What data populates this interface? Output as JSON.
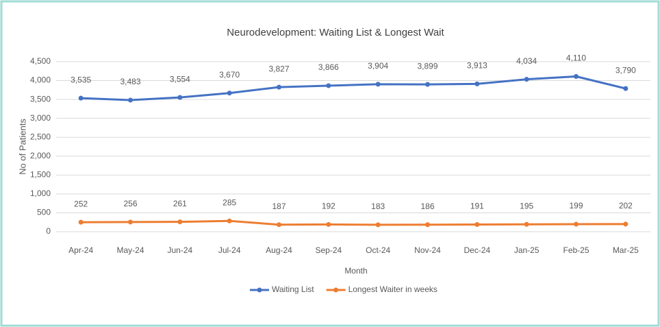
{
  "chart_data": {
    "type": "line",
    "title": "Neurodevelopment: Waiting List & Longest Wait",
    "x_label": "Month",
    "y_label": "No of Patients",
    "categories": [
      "Apr-24",
      "May-24",
      "Jun-24",
      "Jul-24",
      "Aug-24",
      "Sep-24",
      "Oct-24",
      "Nov-24",
      "Dec-24",
      "Jan-25",
      "Feb-25",
      "Mar-25"
    ],
    "series": [
      {
        "name": "Waiting List",
        "color": "#4472c4",
        "values": [
          3535,
          3483,
          3554,
          3670,
          3827,
          3866,
          3904,
          3899,
          3913,
          4034,
          4110,
          3790
        ],
        "value_labels": [
          "3,535",
          "3,483",
          "3,554",
          "3,670",
          "3,827",
          "3,866",
          "3,904",
          "3,899",
          "3,913",
          "4,034",
          "4,110",
          "3,790"
        ]
      },
      {
        "name": "Longest Waiter in weeks",
        "color": "#ed7d31",
        "values": [
          252,
          256,
          261,
          285,
          187,
          192,
          183,
          186,
          191,
          195,
          199,
          202
        ]
      }
    ],
    "ylim": [
      0,
      4500
    ],
    "yticks": [
      0,
      500,
      {
        "value": 1000,
        "label": "1,000"
      },
      {
        "value": 1500,
        "label": "1,500"
      },
      {
        "value": 2000,
        "label": "2,000"
      },
      {
        "value": 2500,
        "label": "2,500"
      },
      {
        "value": 3000,
        "label": "3,000"
      },
      {
        "value": 3500,
        "label": "3,500"
      },
      {
        "value": 4000,
        "label": "4,000"
      },
      {
        "value": 4500,
        "label": "4,500"
      }
    ],
    "grid": true,
    "legend": "bottom"
  }
}
